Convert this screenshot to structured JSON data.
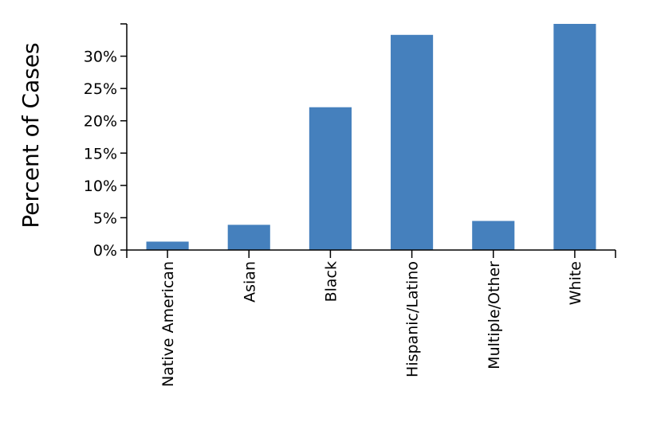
{
  "chart_data": {
    "type": "bar",
    "title": "",
    "xlabel": "",
    "ylabel": "Percent of Cases",
    "categories": [
      "Native American",
      "Asian",
      "Black",
      "Hispanic/Latino",
      "Multiple/Other",
      "White"
    ],
    "values": [
      1.3,
      3.9,
      22.1,
      33.3,
      4.5,
      35.0
    ],
    "ylim": [
      0,
      35
    ],
    "yticks": [
      0,
      5,
      10,
      15,
      20,
      25,
      30
    ],
    "ytick_labels": [
      "0%",
      "5%",
      "10%",
      "15%",
      "20%",
      "25%",
      "30%"
    ],
    "bar_color": "#4580bd",
    "grid": false,
    "legend": "none"
  }
}
